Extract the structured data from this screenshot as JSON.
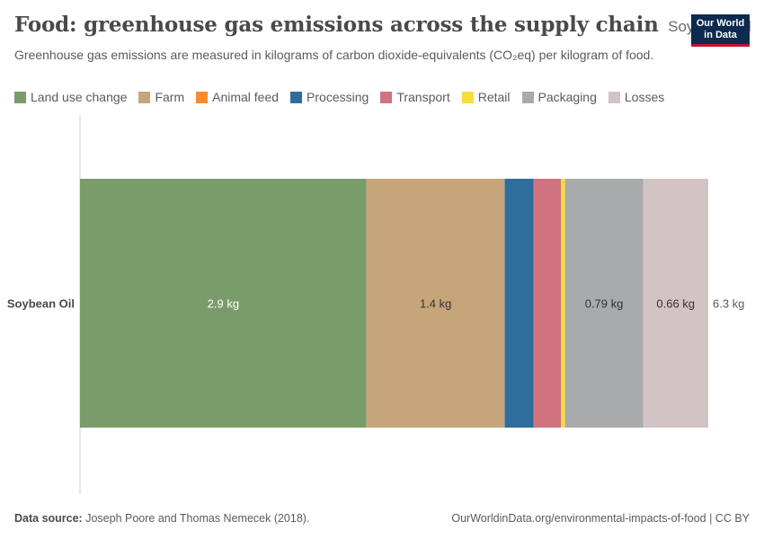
{
  "header": {
    "title": "Food: greenhouse gas emissions across the supply chain",
    "entity": "Soybean Oil",
    "subtitle": "Greenhouse gas emissions are measured in kilograms of carbon dioxide-equivalents (CO₂eq) per kilogram of food.",
    "logo_line1": "Our World",
    "logo_line2": "in Data"
  },
  "footer": {
    "source_label": "Data source:",
    "source_text": " Joseph Poore and Thomas Nemecek (2018).",
    "url": "OurWorldinData.org/environmental-impacts-of-food | CC BY"
  },
  "chart_data": {
    "type": "bar",
    "orientation": "horizontal",
    "stacked": true,
    "categories": [
      "Soybean Oil"
    ],
    "series": [
      {
        "name": "Land use change",
        "color": "#7a9c6a",
        "values": [
          2.9
        ],
        "label": "2.9 kg",
        "label_color": "#ffffff"
      },
      {
        "name": "Farm",
        "color": "#c6a57a",
        "values": [
          1.4
        ],
        "label": "1.4 kg",
        "label_color": "#333333"
      },
      {
        "name": "Animal feed",
        "color": "#f58c2f",
        "values": [
          0
        ],
        "label": "",
        "label_color": "#333333"
      },
      {
        "name": "Processing",
        "color": "#2f6d9c",
        "values": [
          0.29
        ],
        "label": "",
        "label_color": "#ffffff"
      },
      {
        "name": "Transport",
        "color": "#d0737f",
        "values": [
          0.28
        ],
        "label": "",
        "label_color": "#ffffff"
      },
      {
        "name": "Retail",
        "color": "#f5dc3c",
        "values": [
          0.04
        ],
        "label": "",
        "label_color": "#333333"
      },
      {
        "name": "Packaging",
        "color": "#a8aaac",
        "values": [
          0.79
        ],
        "label": "0.79 kg",
        "label_color": "#333333"
      },
      {
        "name": "Losses",
        "color": "#d3c3c5",
        "values": [
          0.66
        ],
        "label": "0.66 kg",
        "label_color": "#333333"
      }
    ],
    "total_label": "6.3 kg",
    "xlim": [
      0,
      6.4
    ],
    "unit": "kg"
  }
}
